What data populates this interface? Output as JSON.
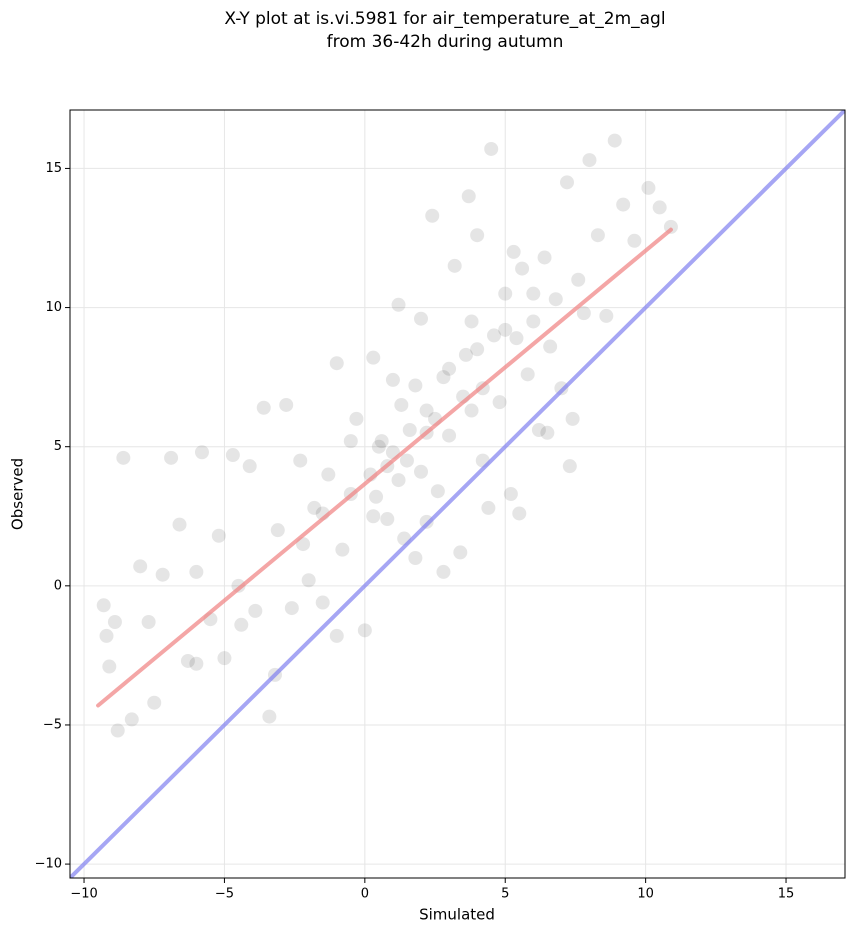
{
  "chart_data": {
    "type": "scatter",
    "title": [
      "X-Y plot at is.vi.5981 for air_temperature_at_2m_agl",
      "from 36-42h during autumn"
    ],
    "x_label": "Simulated",
    "y_label": "Observed",
    "xlim": [
      -10.5,
      17.1
    ],
    "ylim": [
      -10.5,
      17.1
    ],
    "xticks": [
      {
        "value": -10,
        "label": "−10"
      },
      {
        "value": -5,
        "label": "−5"
      },
      0,
      5,
      10,
      15
    ],
    "yticks": [
      {
        "value": -10,
        "label": "−10"
      },
      {
        "value": -5,
        "label": "−5"
      },
      0,
      5,
      10,
      15
    ],
    "grid": true,
    "color": "#000000",
    "x": [
      -9.3,
      -9.1,
      -8.8,
      -8.6,
      -8.9,
      -9.2,
      -8.3,
      -8.0,
      -7.7,
      -7.5,
      -7.2,
      -6.9,
      -6.6,
      -6.3,
      -6.0,
      -5.8,
      -5.5,
      -5.2,
      -5.0,
      -4.7,
      -4.4,
      -4.1,
      -3.9,
      -3.6,
      -3.4,
      -3.1,
      -2.8,
      -2.6,
      -2.3,
      -2.0,
      -1.8,
      -1.5,
      -1.3,
      -1.0,
      -0.8,
      -0.5,
      -0.3,
      0.0,
      0.2,
      0.4,
      0.6,
      0.8,
      1.0,
      1.2,
      1.4,
      1.6,
      1.8,
      2.0,
      2.2,
      2.4,
      2.6,
      2.8,
      3.0,
      3.2,
      3.4,
      3.6,
      3.8,
      4.0,
      4.2,
      4.4,
      4.6,
      4.8,
      5.0,
      5.2,
      5.4,
      5.6,
      5.8,
      6.0,
      6.2,
      6.4,
      6.6,
      6.8,
      7.0,
      7.2,
      7.4,
      7.6,
      7.8,
      8.0,
      8.3,
      8.6,
      8.9,
      9.2,
      9.6,
      10.1,
      10.5,
      10.9,
      4.5,
      3.7,
      2.0,
      1.0,
      0.5,
      1.5,
      2.5,
      3.0,
      4.0,
      5.0,
      6.0,
      1.2,
      0.8,
      2.2,
      3.5,
      -1.5,
      -2.2,
      0.3,
      1.8,
      2.8,
      5.5,
      6.5,
      7.3,
      -6.0,
      -4.5,
      -3.2,
      -1.0,
      0.3,
      1.3,
      3.8,
      5.3,
      4.2,
      2.2,
      -0.5
    ],
    "values": [
      -0.7,
      -2.9,
      -5.2,
      4.6,
      -1.3,
      -1.8,
      -4.8,
      0.7,
      -1.3,
      -4.2,
      0.4,
      4.6,
      2.2,
      -2.7,
      0.5,
      4.8,
      -1.2,
      1.8,
      -2.6,
      4.7,
      -1.4,
      4.3,
      -0.9,
      6.4,
      -4.7,
      2.0,
      6.5,
      -0.8,
      4.5,
      0.2,
      2.8,
      -0.6,
      4.0,
      8.0,
      1.3,
      3.3,
      6.0,
      -1.6,
      4.0,
      3.2,
      5.2,
      2.4,
      4.8,
      10.1,
      1.7,
      5.6,
      7.2,
      4.1,
      6.3,
      13.3,
      3.4,
      7.5,
      5.4,
      11.5,
      1.2,
      8.3,
      6.3,
      12.6,
      7.1,
      2.8,
      9.0,
      6.6,
      10.5,
      3.3,
      8.9,
      11.4,
      7.6,
      9.5,
      5.6,
      11.8,
      8.6,
      10.3,
      7.1,
      14.5,
      6.0,
      11.0,
      9.8,
      15.3,
      12.6,
      9.7,
      16.0,
      13.7,
      12.4,
      14.3,
      13.6,
      12.9,
      15.7,
      14.0,
      9.6,
      7.4,
      5.0,
      4.5,
      6.0,
      7.8,
      8.5,
      9.2,
      10.5,
      3.8,
      4.3,
      5.5,
      6.8,
      2.6,
      1.5,
      2.5,
      1.0,
      0.5,
      2.6,
      5.5,
      4.3,
      -2.8,
      0.0,
      -3.2,
      -1.8,
      8.2,
      6.5,
      9.5,
      12.0,
      4.5,
      2.3,
      5.2
    ],
    "fit_line": {
      "x": [
        -9.5,
        10.9
      ],
      "y": [
        -4.3,
        12.8
      ],
      "color": "#f08080"
    },
    "identity_line": {
      "x": [
        -10.5,
        17.1
      ],
      "y": [
        -10.5,
        17.1
      ],
      "color": "#8080f0"
    }
  }
}
